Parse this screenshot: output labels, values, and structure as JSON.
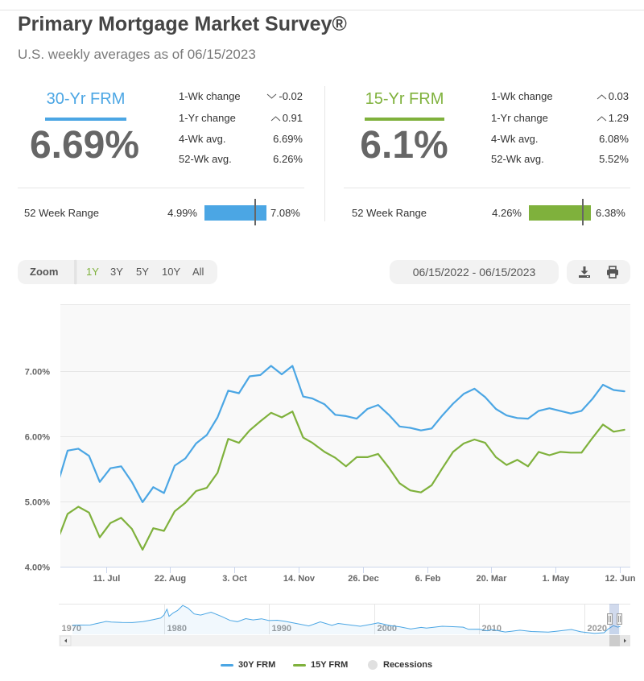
{
  "header": {
    "title": "Primary Mortgage Market Survey®",
    "subtitle": "U.S. weekly averages as of 06/15/2023"
  },
  "colors": {
    "frm30": "#4ba6e4",
    "frm15": "#7fb13c",
    "recessions": "#e0e0e0",
    "text": "#333333",
    "muted": "#777777"
  },
  "rates": [
    {
      "name": "30-Yr FRM",
      "rate": "6.69%",
      "stats": [
        {
          "label": "1-Wk change",
          "direction": "down",
          "value": "-0.02"
        },
        {
          "label": "1-Yr change",
          "direction": "up",
          "value": "0.91"
        },
        {
          "label": "4-Wk avg.",
          "value": "6.69%"
        },
        {
          "label": "52-Wk avg.",
          "value": "6.26%"
        }
      ],
      "range": {
        "label": "52 Week Range",
        "low": "4.99%",
        "high": "7.08%",
        "low_value": 4.99,
        "high_value": 7.08,
        "current_value": 6.69
      }
    },
    {
      "name": "15-Yr FRM",
      "rate": "6.1%",
      "stats": [
        {
          "label": "1-Wk change",
          "direction": "up",
          "value": "0.03"
        },
        {
          "label": "1-Yr change",
          "direction": "up",
          "value": "1.29"
        },
        {
          "label": "4-Wk avg.",
          "value": "6.08%"
        },
        {
          "label": "52-Wk avg.",
          "value": "5.52%"
        }
      ],
      "range": {
        "label": "52 Week Range",
        "low": "4.26%",
        "high": "6.38%",
        "low_value": 4.26,
        "high_value": 6.38,
        "current_value": 6.1
      }
    }
  ],
  "toolbar": {
    "zoom_label": "Zoom",
    "zoom_options": [
      "1Y",
      "3Y",
      "5Y",
      "10Y",
      "All"
    ],
    "active_zoom": "1Y",
    "date_range": "06/15/2022 - 06/15/2023",
    "icons": [
      "download-icon",
      "print-icon"
    ]
  },
  "legend": [
    {
      "label": "30Y FRM",
      "type": "line",
      "color": "#4ba6e4"
    },
    {
      "label": "15Y FRM",
      "type": "line",
      "color": "#7fb13c"
    },
    {
      "label": "Recessions",
      "type": "dot",
      "color": "#e0e0e0"
    }
  ],
  "chart_data": {
    "type": "line",
    "title": "",
    "xlabel": "",
    "ylabel": "",
    "ylim": [
      4.0,
      8.0
    ],
    "grid": true,
    "legend_position": "bottom",
    "yticks": [
      {
        "value": 4,
        "label": "4.00%"
      },
      {
        "value": 5,
        "label": "5.00%"
      },
      {
        "value": 6,
        "label": "6.00%"
      },
      {
        "value": 7,
        "label": "7.00%"
      }
    ],
    "xticks": [
      {
        "date": "2022-07-11",
        "label": "11. Jul"
      },
      {
        "date": "2022-08-22",
        "label": "22. Aug"
      },
      {
        "date": "2022-10-03",
        "label": "3. Oct"
      },
      {
        "date": "2022-11-14",
        "label": "14. Nov"
      },
      {
        "date": "2022-12-26",
        "label": "26. Dec"
      },
      {
        "date": "2023-02-06",
        "label": "6. Feb"
      },
      {
        "date": "2023-03-20",
        "label": "20. Mar"
      },
      {
        "date": "2023-05-01",
        "label": "1. May"
      },
      {
        "date": "2023-06-12",
        "label": "12. Jun"
      }
    ],
    "x": [
      "2022-06-09",
      "2022-06-16",
      "2022-06-23",
      "2022-06-30",
      "2022-07-07",
      "2022-07-14",
      "2022-07-21",
      "2022-07-28",
      "2022-08-04",
      "2022-08-11",
      "2022-08-18",
      "2022-08-25",
      "2022-09-01",
      "2022-09-08",
      "2022-09-15",
      "2022-09-22",
      "2022-09-29",
      "2022-10-06",
      "2022-10-13",
      "2022-10-20",
      "2022-10-27",
      "2022-11-03",
      "2022-11-10",
      "2022-11-17",
      "2022-11-23",
      "2022-12-01",
      "2022-12-08",
      "2022-12-15",
      "2022-12-22",
      "2022-12-29",
      "2023-01-05",
      "2023-01-12",
      "2023-01-19",
      "2023-01-26",
      "2023-02-02",
      "2023-02-09",
      "2023-02-16",
      "2023-02-23",
      "2023-03-02",
      "2023-03-09",
      "2023-03-16",
      "2023-03-23",
      "2023-03-30",
      "2023-04-06",
      "2023-04-13",
      "2023-04-20",
      "2023-04-27",
      "2023-05-04",
      "2023-05-11",
      "2023-05-18",
      "2023-05-25",
      "2023-06-01",
      "2023-06-08",
      "2023-06-15"
    ],
    "series": [
      {
        "name": "30Y FRM",
        "color": "#4ba6e4",
        "values": [
          5.23,
          5.78,
          5.81,
          5.7,
          5.3,
          5.51,
          5.54,
          5.3,
          4.99,
          5.22,
          5.13,
          5.55,
          5.66,
          5.89,
          6.02,
          6.29,
          6.7,
          6.66,
          6.92,
          6.94,
          7.08,
          6.95,
          7.08,
          6.61,
          6.58,
          6.49,
          6.33,
          6.31,
          6.27,
          6.42,
          6.48,
          6.33,
          6.15,
          6.13,
          6.09,
          6.12,
          6.32,
          6.5,
          6.65,
          6.73,
          6.6,
          6.42,
          6.32,
          6.28,
          6.27,
          6.39,
          6.43,
          6.39,
          6.35,
          6.39,
          6.57,
          6.79,
          6.71,
          6.69
        ]
      },
      {
        "name": "15Y FRM",
        "color": "#7fb13c",
        "values": [
          4.38,
          4.81,
          4.92,
          4.83,
          4.45,
          4.67,
          4.75,
          4.58,
          4.26,
          4.59,
          4.55,
          4.85,
          4.98,
          5.16,
          5.21,
          5.44,
          5.96,
          5.9,
          6.09,
          6.23,
          6.36,
          6.29,
          6.38,
          5.98,
          5.9,
          5.76,
          5.67,
          5.54,
          5.68,
          5.68,
          5.73,
          5.52,
          5.28,
          5.17,
          5.14,
          5.25,
          5.51,
          5.76,
          5.89,
          5.95,
          5.9,
          5.68,
          5.56,
          5.64,
          5.54,
          5.76,
          5.71,
          5.76,
          5.75,
          5.75,
          5.97,
          6.18,
          6.07,
          6.1
        ]
      }
    ]
  },
  "navigator": {
    "labels": [
      "1970",
      "1980",
      "1990",
      "2000",
      "2010",
      "2020"
    ],
    "series_name": "30Y FRM",
    "points": [
      [
        1971.3,
        7.3
      ],
      [
        1972,
        7.4
      ],
      [
        1973,
        7.45
      ],
      [
        1973.9,
        8.6
      ],
      [
        1974.5,
        9.4
      ],
      [
        1975,
        9.1
      ],
      [
        1976,
        8.9
      ],
      [
        1977,
        8.8
      ],
      [
        1978,
        9.3
      ],
      [
        1979,
        10.4
      ],
      [
        1979.7,
        11.3
      ],
      [
        1980.0,
        12.9
      ],
      [
        1980.3,
        16.3
      ],
      [
        1980.5,
        12.3
      ],
      [
        1980.9,
        14.2
      ],
      [
        1981.3,
        15.5
      ],
      [
        1981.8,
        18.4
      ],
      [
        1982.3,
        16.9
      ],
      [
        1982.9,
        13.6
      ],
      [
        1983.5,
        13.0
      ],
      [
        1984.5,
        14.6
      ],
      [
        1985.5,
        12.2
      ],
      [
        1986.3,
        10.0
      ],
      [
        1987.0,
        9.3
      ],
      [
        1987.8,
        11.0
      ],
      [
        1988.5,
        10.3
      ],
      [
        1989.3,
        10.9
      ],
      [
        1990.0,
        9.9
      ],
      [
        1990.8,
        10.1
      ],
      [
        1991.5,
        9.5
      ],
      [
        1992.5,
        8.4
      ],
      [
        1993.8,
        6.9
      ],
      [
        1994.9,
        9.2
      ],
      [
        1996,
        7.2
      ],
      [
        1996.6,
        8.3
      ],
      [
        1997.5,
        7.6
      ],
      [
        1998.7,
        6.7
      ],
      [
        1999.9,
        8.0
      ],
      [
        2000.4,
        8.6
      ],
      [
        2001.5,
        7.1
      ],
      [
        2002.5,
        6.4
      ],
      [
        2003.5,
        5.2
      ],
      [
        2004.5,
        6.1
      ],
      [
        2005,
        5.7
      ],
      [
        2006.5,
        6.7
      ],
      [
        2007.5,
        6.5
      ],
      [
        2008.5,
        6.2
      ],
      [
        2009,
        5.0
      ],
      [
        2010,
        5.1
      ],
      [
        2010.8,
        4.2
      ],
      [
        2011.2,
        4.9
      ],
      [
        2012.5,
        3.5
      ],
      [
        2013.9,
        4.5
      ],
      [
        2015,
        3.8
      ],
      [
        2016.6,
        3.4
      ],
      [
        2017.5,
        4.0
      ],
      [
        2018.8,
        4.9
      ],
      [
        2019.7,
        3.6
      ],
      [
        2021,
        2.7
      ],
      [
        2021.9,
        3.1
      ],
      [
        2022.3,
        5.2
      ],
      [
        2022.8,
        7.08
      ],
      [
        2023.2,
        6.2
      ],
      [
        2023.45,
        6.69
      ]
    ]
  }
}
